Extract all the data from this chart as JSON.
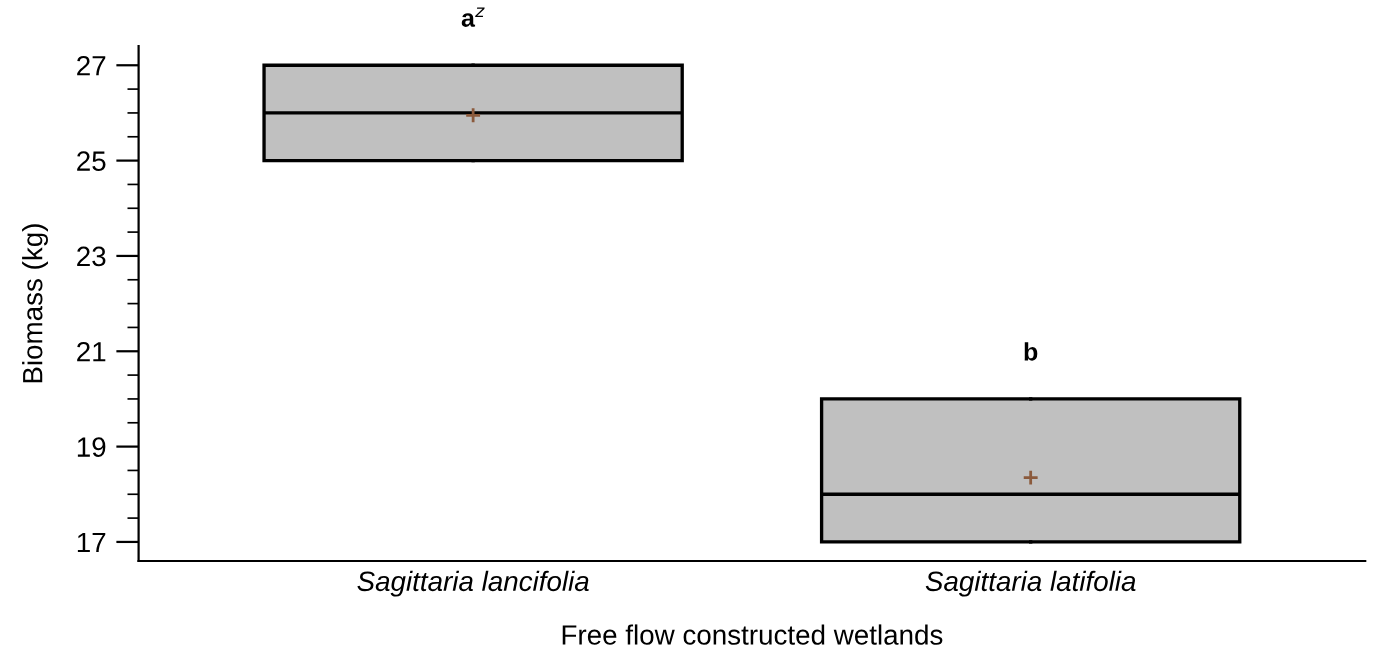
{
  "chart_data": {
    "type": "box",
    "xlabel": "Free flow constructed wetlands",
    "ylabel": "Biomass (kg)",
    "categories": [
      "Sagittaria lancifolia",
      "Sagittaria latifolia"
    ],
    "boxes": [
      {
        "low": 25,
        "q1": 25,
        "median": 26,
        "q3": 27,
        "high": 27,
        "mean": 25.95
      },
      {
        "low": 17,
        "q1": 17,
        "median": 18,
        "q3": 20,
        "high": 20,
        "mean": 18.35
      }
    ],
    "colors": [
      "#c0c0c0",
      "#c0c0c0"
    ],
    "ylim": [
      16.6,
      27.4
    ],
    "yticks": [
      17,
      {
        "value": 17.5,
        "label": null
      },
      {
        "value": 18,
        "label": null
      },
      {
        "value": 18.5,
        "label": null
      },
      19,
      {
        "value": 19.5,
        "label": null
      },
      {
        "value": 20,
        "label": null
      },
      {
        "value": 20.5,
        "label": null
      },
      21,
      {
        "value": 21.5,
        "label": null
      },
      {
        "value": 22,
        "label": null
      },
      {
        "value": 22.5,
        "label": null
      },
      23,
      {
        "value": 23.5,
        "label": null
      },
      {
        "value": 24,
        "label": null
      },
      {
        "value": 24.5,
        "label": null
      },
      25,
      {
        "value": 25.5,
        "label": null
      },
      {
        "value": 26,
        "label": null
      },
      {
        "value": 26.5,
        "label": null
      },
      27
    ],
    "annotations": [
      "a$^{z}$",
      "b"
    ],
    "grid": false,
    "legend": false
  }
}
